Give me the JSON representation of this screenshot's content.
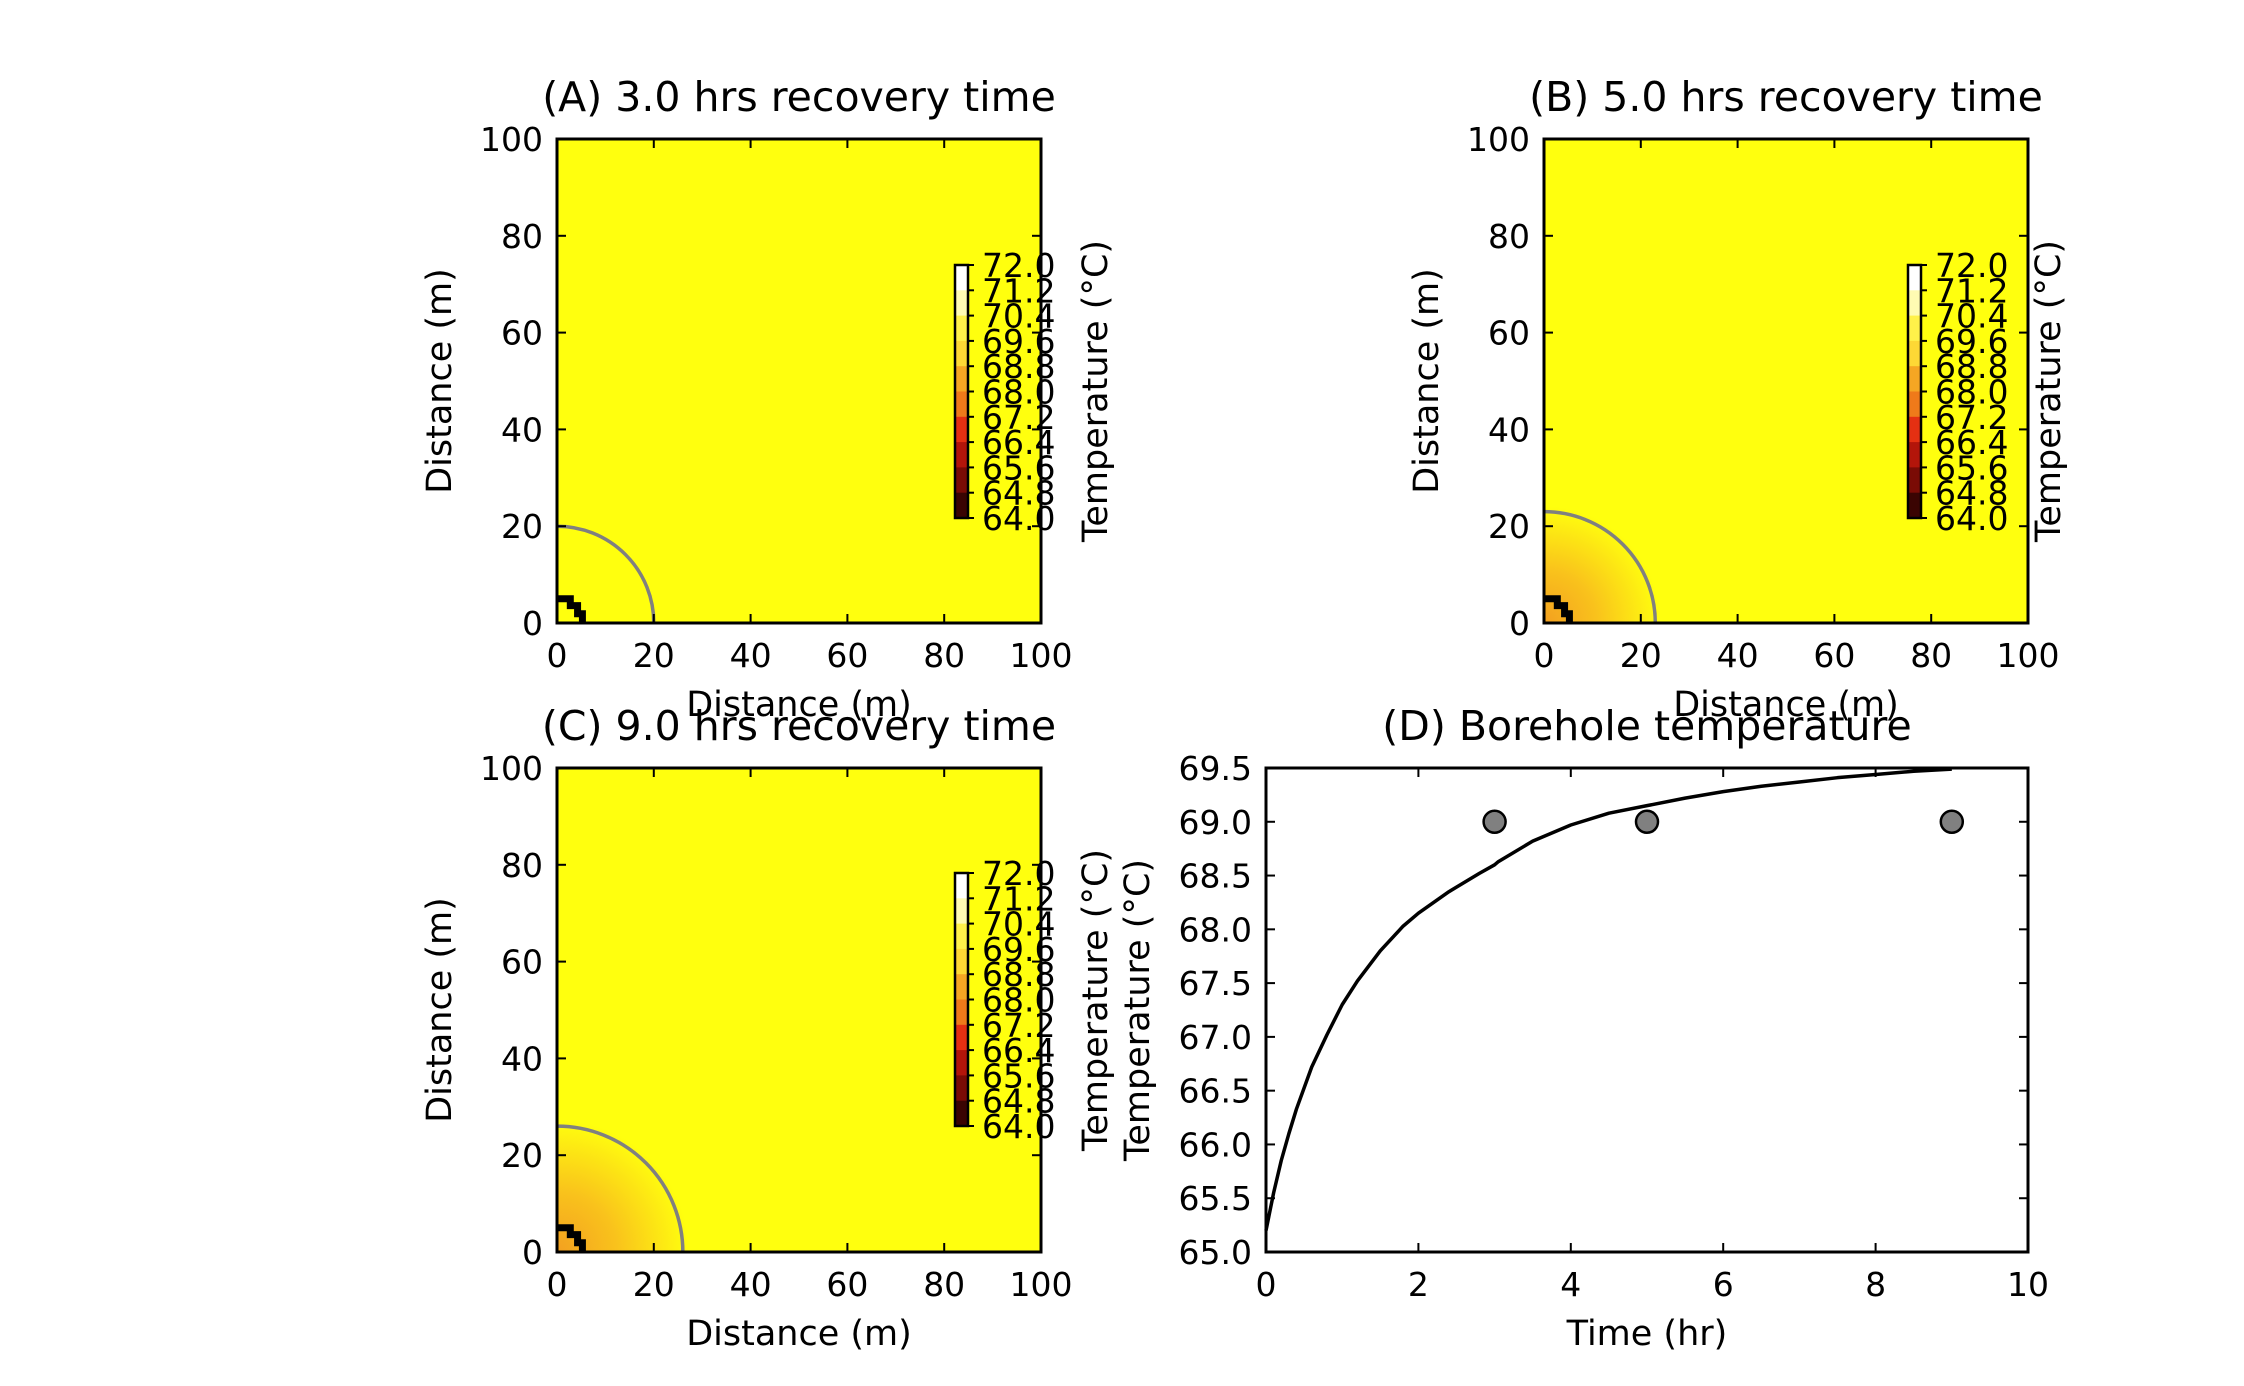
{
  "figure": {
    "colors": {
      "field_background": "#ffff0e",
      "contour_warm_center": "#f3a020",
      "isotherm_color": "#808080",
      "line_color": "#000000",
      "marker_fill": "#808080"
    }
  },
  "chart_data": [
    {
      "id": "A",
      "type": "heatmap",
      "title": "(A) 3.0 hrs recovery time",
      "xlabel": "Distance (m)",
      "ylabel": "Distance (m)",
      "xlim": [
        0,
        100
      ],
      "ylim": [
        0,
        100
      ],
      "xticks": [
        "0",
        "20",
        "40",
        "60",
        "80",
        "100"
      ],
      "yticks": [
        "0",
        "20",
        "40",
        "60",
        "80",
        "100"
      ],
      "isotherm_radius_m": 20,
      "borehole_radius_m": 5,
      "colorbar": {
        "label": "Temperature (°C)",
        "ticks": [
          "72.0",
          "71.2",
          "70.4",
          "69.6",
          "68.8",
          "68.0",
          "67.2",
          "66.4",
          "65.6",
          "64.8",
          "64.0"
        ],
        "range": [
          64.0,
          72.0
        ]
      }
    },
    {
      "id": "B",
      "type": "heatmap",
      "title": "(B) 5.0 hrs recovery time",
      "xlabel": "Distance (m)",
      "ylabel": "Distance (m)",
      "xlim": [
        0,
        100
      ],
      "ylim": [
        0,
        100
      ],
      "xticks": [
        "0",
        "20",
        "40",
        "60",
        "80",
        "100"
      ],
      "yticks": [
        "0",
        "20",
        "40",
        "60",
        "80",
        "100"
      ],
      "isotherm_radius_m": 23,
      "borehole_radius_m": 5,
      "colorbar": {
        "label": "Temperature (°C)",
        "ticks": [
          "72.0",
          "71.2",
          "70.4",
          "69.6",
          "68.8",
          "68.0",
          "67.2",
          "66.4",
          "65.6",
          "64.8",
          "64.0"
        ],
        "range": [
          64.0,
          72.0
        ]
      }
    },
    {
      "id": "C",
      "type": "heatmap",
      "title": "(C) 9.0 hrs recovery time",
      "xlabel": "Distance (m)",
      "ylabel": "Distance (m)",
      "xlim": [
        0,
        100
      ],
      "ylim": [
        0,
        100
      ],
      "xticks": [
        "0",
        "20",
        "40",
        "60",
        "80",
        "100"
      ],
      "yticks": [
        "0",
        "20",
        "40",
        "60",
        "80",
        "100"
      ],
      "isotherm_radius_m": 26,
      "borehole_radius_m": 5,
      "colorbar": {
        "label": "Temperature (°C)",
        "ticks": [
          "72.0",
          "71.2",
          "70.4",
          "69.6",
          "68.8",
          "68.0",
          "67.2",
          "66.4",
          "65.6",
          "64.8",
          "64.0"
        ],
        "range": [
          64.0,
          72.0
        ]
      }
    },
    {
      "id": "D",
      "type": "line",
      "title": "(D) Borehole temperature",
      "xlabel": "Time (hr)",
      "ylabel": "Temperature (°C)",
      "xlim": [
        0,
        10
      ],
      "ylim": [
        65.0,
        69.5
      ],
      "xticks": [
        "0",
        "2",
        "4",
        "6",
        "8",
        "10"
      ],
      "yticks": [
        "65.0",
        "65.5",
        "66.0",
        "66.5",
        "67.0",
        "67.5",
        "68.0",
        "68.5",
        "69.0",
        "69.5"
      ],
      "series": [
        {
          "kind": "line",
          "x": [
            0,
            0.1,
            0.2,
            0.3,
            0.4,
            0.6,
            0.8,
            1.0,
            1.2,
            1.5,
            1.8,
            2.0,
            2.4,
            2.8,
            3.0,
            3.05,
            3.5,
            4.0,
            4.5,
            5.0,
            5.5,
            6.0,
            6.5,
            7.0,
            7.5,
            8.0,
            8.5,
            9.0
          ],
          "y": [
            65.2,
            65.55,
            65.85,
            66.1,
            66.33,
            66.72,
            67.02,
            67.3,
            67.52,
            67.8,
            68.03,
            68.15,
            68.35,
            68.52,
            68.6,
            68.63,
            68.82,
            68.97,
            69.08,
            69.15,
            69.22,
            69.28,
            69.33,
            69.37,
            69.41,
            69.44,
            69.47,
            69.49
          ]
        },
        {
          "kind": "scatter",
          "x": [
            3,
            5,
            9
          ],
          "y": [
            69.0,
            69.0,
            69.0
          ]
        }
      ]
    }
  ]
}
